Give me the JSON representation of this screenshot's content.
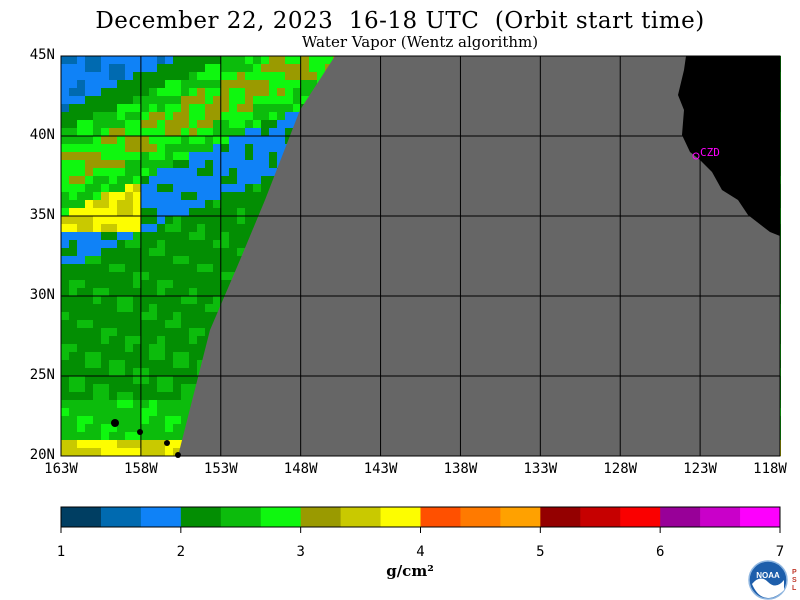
{
  "title": "December 22, 2023  16-18 UTC  (Orbit start time)",
  "subtitle": "Water Vapor (Wentz algorithm)",
  "lat_labels": [
    "45N",
    "40N",
    "35N",
    "30N",
    "25N",
    "20N"
  ],
  "lat_values": [
    45,
    40,
    35,
    30,
    25,
    20
  ],
  "lon_labels": [
    "163W",
    "158W",
    "153W",
    "148W",
    "143W",
    "138W",
    "133W",
    "128W",
    "123W",
    "118W"
  ],
  "lon_values": [
    -163,
    -158,
    -153,
    -148,
    -143,
    -138,
    -133,
    -128,
    -123,
    -118
  ],
  "station_label": "CZD",
  "colorbar": {
    "unit": "g/cm²",
    "ticks": [
      "1",
      "2",
      "3",
      "4",
      "5",
      "6",
      "7"
    ],
    "colors": [
      "#003e62",
      "#006ab0",
      "#0f82f7",
      "#038e03",
      "#0cbc0c",
      "#0ff70f",
      "#9a9a00",
      "#c9c900",
      "#fdfd00",
      "#ff5000",
      "#ff7a00",
      "#ffa100",
      "#940000",
      "#c60000",
      "#fa0000",
      "#980098",
      "#c900c9",
      "#fd00fd"
    ]
  },
  "colors": {
    "no_data": "#666666",
    "land": "#000000",
    "grid": "#000000",
    "station": "#ff00ff"
  },
  "logo_text": "NOAA",
  "logo_side_text": "PSL"
}
